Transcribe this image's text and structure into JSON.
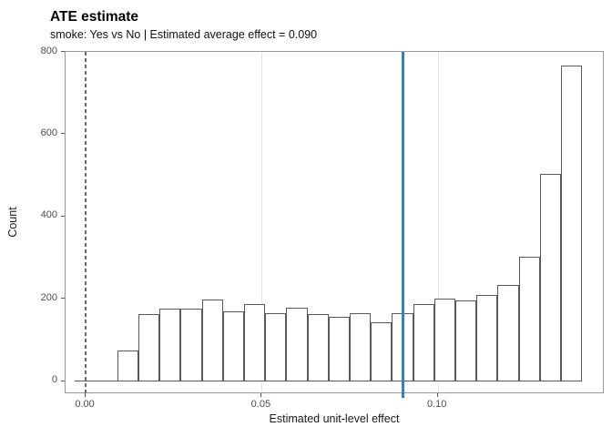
{
  "header": {
    "title": "ATE estimate",
    "subtitle": "smoke: Yes vs No | Estimated average effect = 0.090"
  },
  "chart_data": {
    "type": "bar",
    "subtype": "histogram",
    "title": "ATE estimate",
    "subtitle": "smoke: Yes vs No | Estimated average effect = 0.090",
    "xlabel": "Estimated unit-level effect",
    "ylabel": "Count",
    "bin_start": 0.009,
    "bin_width": 0.006,
    "counts": [
      75,
      162,
      177,
      177,
      198,
      170,
      188,
      166,
      179,
      163,
      155,
      166,
      142,
      166,
      188,
      200,
      195,
      210,
      233,
      303,
      503,
      766
    ],
    "zero_count_bins_before": 2,
    "x_ticks": [
      {
        "value": 0.0,
        "label": "0.00"
      },
      {
        "value": 0.05,
        "label": "0.05"
      },
      {
        "value": 0.1,
        "label": "0.10"
      }
    ],
    "y_ticks": [
      {
        "value": 0,
        "label": "0"
      },
      {
        "value": 200,
        "label": "200"
      },
      {
        "value": 400,
        "label": "400"
      },
      {
        "value": 600,
        "label": "600"
      },
      {
        "value": 800,
        "label": "800"
      }
    ],
    "xlim": [
      -0.0057,
      0.1474
    ],
    "ylim": [
      -32,
      800
    ],
    "x_gridlines": [
      0.05,
      0.1
    ],
    "grid_horizontal": false,
    "legend": "none",
    "reference_lines": {
      "average_effect": {
        "x": 0.09,
        "style": "solid",
        "color": "#3182bd"
      },
      "zero": {
        "x": 0.0,
        "style": "dashed",
        "color": "#6a6a6a"
      }
    },
    "colors": {
      "bar_fill": "#ffffff",
      "bar_stroke": "#595959",
      "panel_border": "#9b9b9b",
      "gridline": "#e3e3e3",
      "tick_label": "#4d4d4d",
      "accent_blue": "#3182bd"
    }
  }
}
